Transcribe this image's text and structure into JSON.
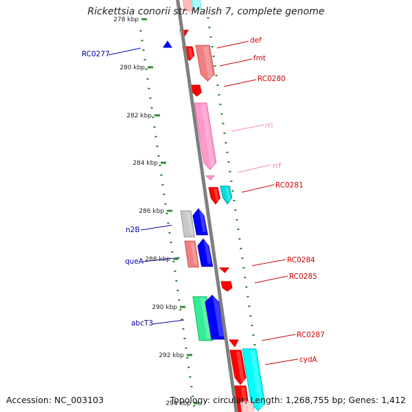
{
  "title": "Rickettsia conorii str. Malish 7, complete genome",
  "accession_text": "Accession: NC_003103",
  "topology_text": "Topology: circular; Length: 1,268,755 bp; Genes: 1,412",
  "colors": {
    "backbone": "#7f7f7f",
    "tick": "#2e8b2e",
    "forward_label": "#cc0000",
    "reverse_label": "#0000aa",
    "rrna_label": "#ee88bb"
  },
  "kbp_labels": [
    "278 kbp",
    "280 kbp",
    "282 kbp",
    "284 kbp",
    "286 kbp",
    "288 kbp",
    "290 kbp",
    "292 kbp",
    "294 kbp"
  ],
  "gene_labels": [
    {
      "text": "RC0277",
      "strand": "reverse"
    },
    {
      "text": "def",
      "strand": "forward"
    },
    {
      "text": "fmt",
      "strand": "forward"
    },
    {
      "text": "RC0280",
      "strand": "forward"
    },
    {
      "text": "rrl",
      "strand": "rrna"
    },
    {
      "text": "rrf",
      "strand": "rrna"
    },
    {
      "text": "RC0281",
      "strand": "forward"
    },
    {
      "text": "n2B",
      "strand": "reverse"
    },
    {
      "text": "queA",
      "strand": "reverse"
    },
    {
      "text": "RC0284",
      "strand": "forward"
    },
    {
      "text": "RC0285",
      "strand": "forward"
    },
    {
      "text": "abcT3",
      "strand": "reverse"
    },
    {
      "text": "RC0287",
      "strand": "forward"
    },
    {
      "text": "cydA",
      "strand": "forward"
    }
  ]
}
